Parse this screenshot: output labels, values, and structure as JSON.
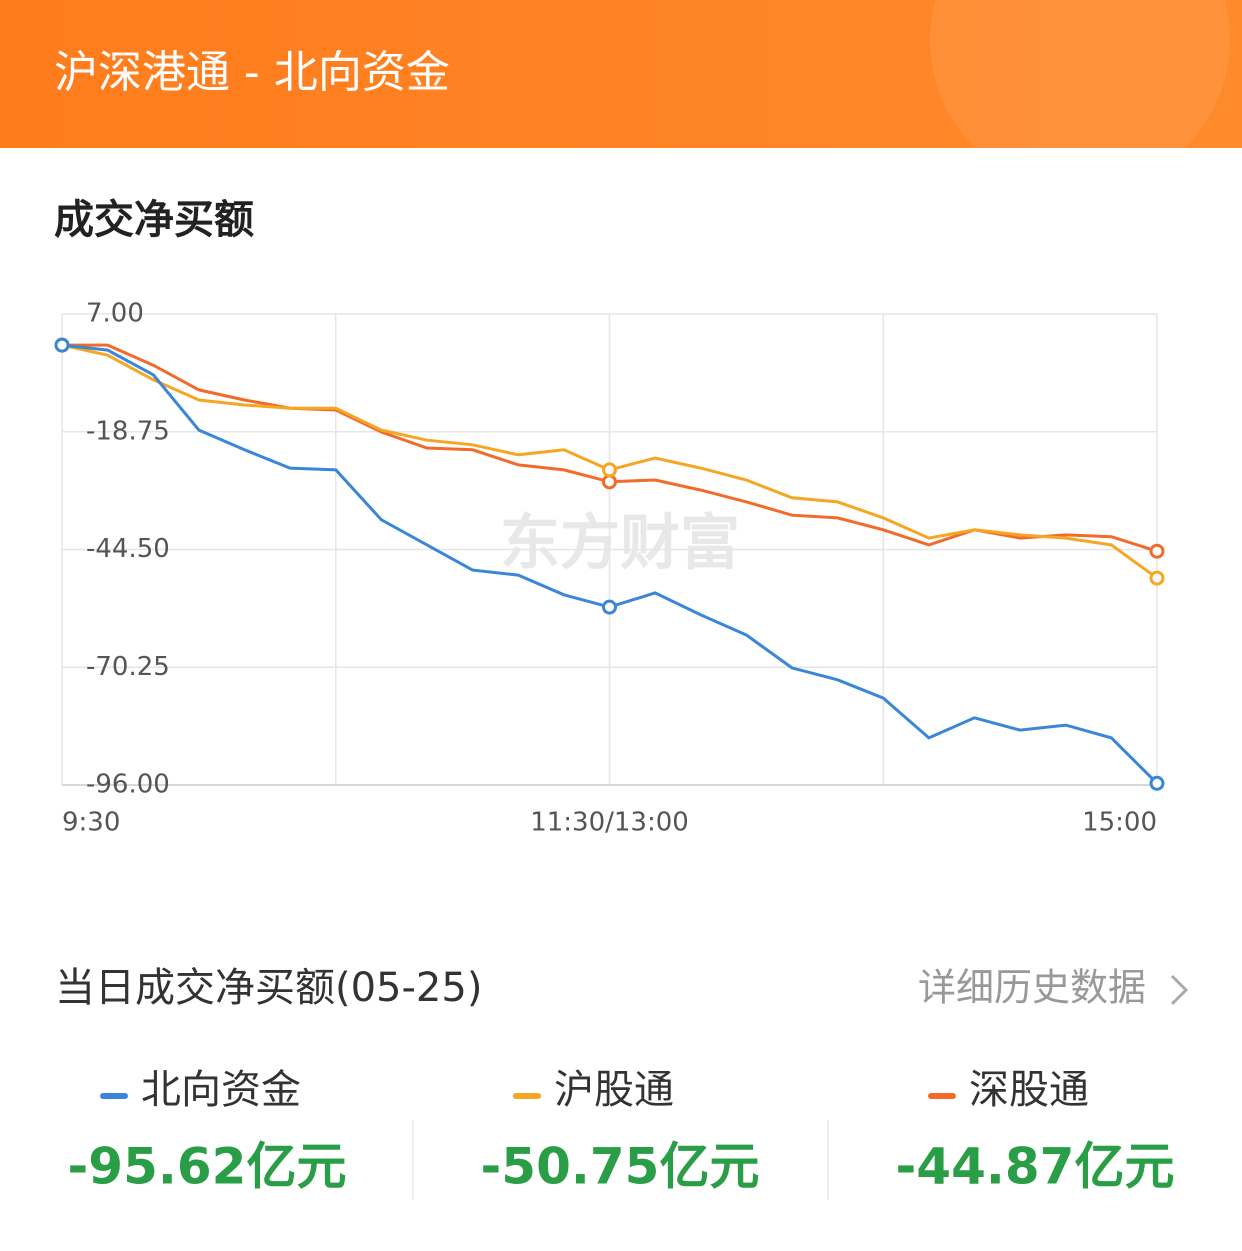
{
  "header": {
    "title": "沪深港通 - 北向资金"
  },
  "section_title": "成交净买额",
  "watermark": "东方财富",
  "chart_data": {
    "type": "line",
    "categories": [
      "9:30",
      null,
      null,
      null,
      null,
      null,
      null,
      null,
      null,
      null,
      null,
      null,
      "11:30/13:00",
      null,
      null,
      null,
      null,
      null,
      null,
      null,
      null,
      null,
      null,
      null,
      "15:00"
    ],
    "series": [
      {
        "name": "北向资金",
        "color": "#3a86d9",
        "values": [
          0.2,
          -0.9,
          -6.3,
          -18.4,
          -22.7,
          -26.7,
          -27.1,
          -38.0,
          -43.5,
          -49.0,
          -50.1,
          -54.4,
          -57.1,
          -54.0,
          -58.8,
          -63.2,
          -70.4,
          -73.0,
          -77.0,
          -85.7,
          -81.3,
          -84.0,
          -82.9,
          -85.7,
          -95.62
        ]
      },
      {
        "name": "沪股通",
        "color": "#f5a623",
        "values": [
          0.2,
          -2.0,
          -7.4,
          -11.8,
          -12.9,
          -13.6,
          -13.6,
          -18.4,
          -20.6,
          -21.6,
          -23.8,
          -22.7,
          -27.1,
          -24.5,
          -26.7,
          -29.3,
          -33.2,
          -34.1,
          -37.6,
          -42.0,
          -40.2,
          -41.3,
          -42.0,
          -43.5,
          -50.75
        ]
      },
      {
        "name": "深股通",
        "color": "#f26b2b",
        "values": [
          0.2,
          0.2,
          -4.2,
          -9.6,
          -11.8,
          -13.6,
          -14.0,
          -18.8,
          -22.3,
          -22.7,
          -26.0,
          -27.1,
          -29.7,
          -29.3,
          -31.5,
          -34.1,
          -37.0,
          -37.6,
          -40.2,
          -43.5,
          -40.2,
          -42.0,
          -41.3,
          -41.7,
          -44.87
        ]
      }
    ],
    "ylim": [
      -96,
      7
    ],
    "yticks": [
      {
        "value": 7,
        "label": "7.00"
      },
      {
        "value": -18.75,
        "label": "-18.75"
      },
      {
        "value": -44.5,
        "label": "-44.50"
      },
      {
        "value": -70.25,
        "label": "-70.25"
      },
      {
        "value": -96,
        "label": "-96.00"
      }
    ],
    "grid": true
  },
  "summary": {
    "title": "当日成交净买额(05-25)",
    "link": "详细历史数据",
    "items": [
      {
        "value": "-95.62亿元"
      },
      {
        "value": "-50.75亿元"
      },
      {
        "value": "-44.87亿元"
      }
    ]
  }
}
